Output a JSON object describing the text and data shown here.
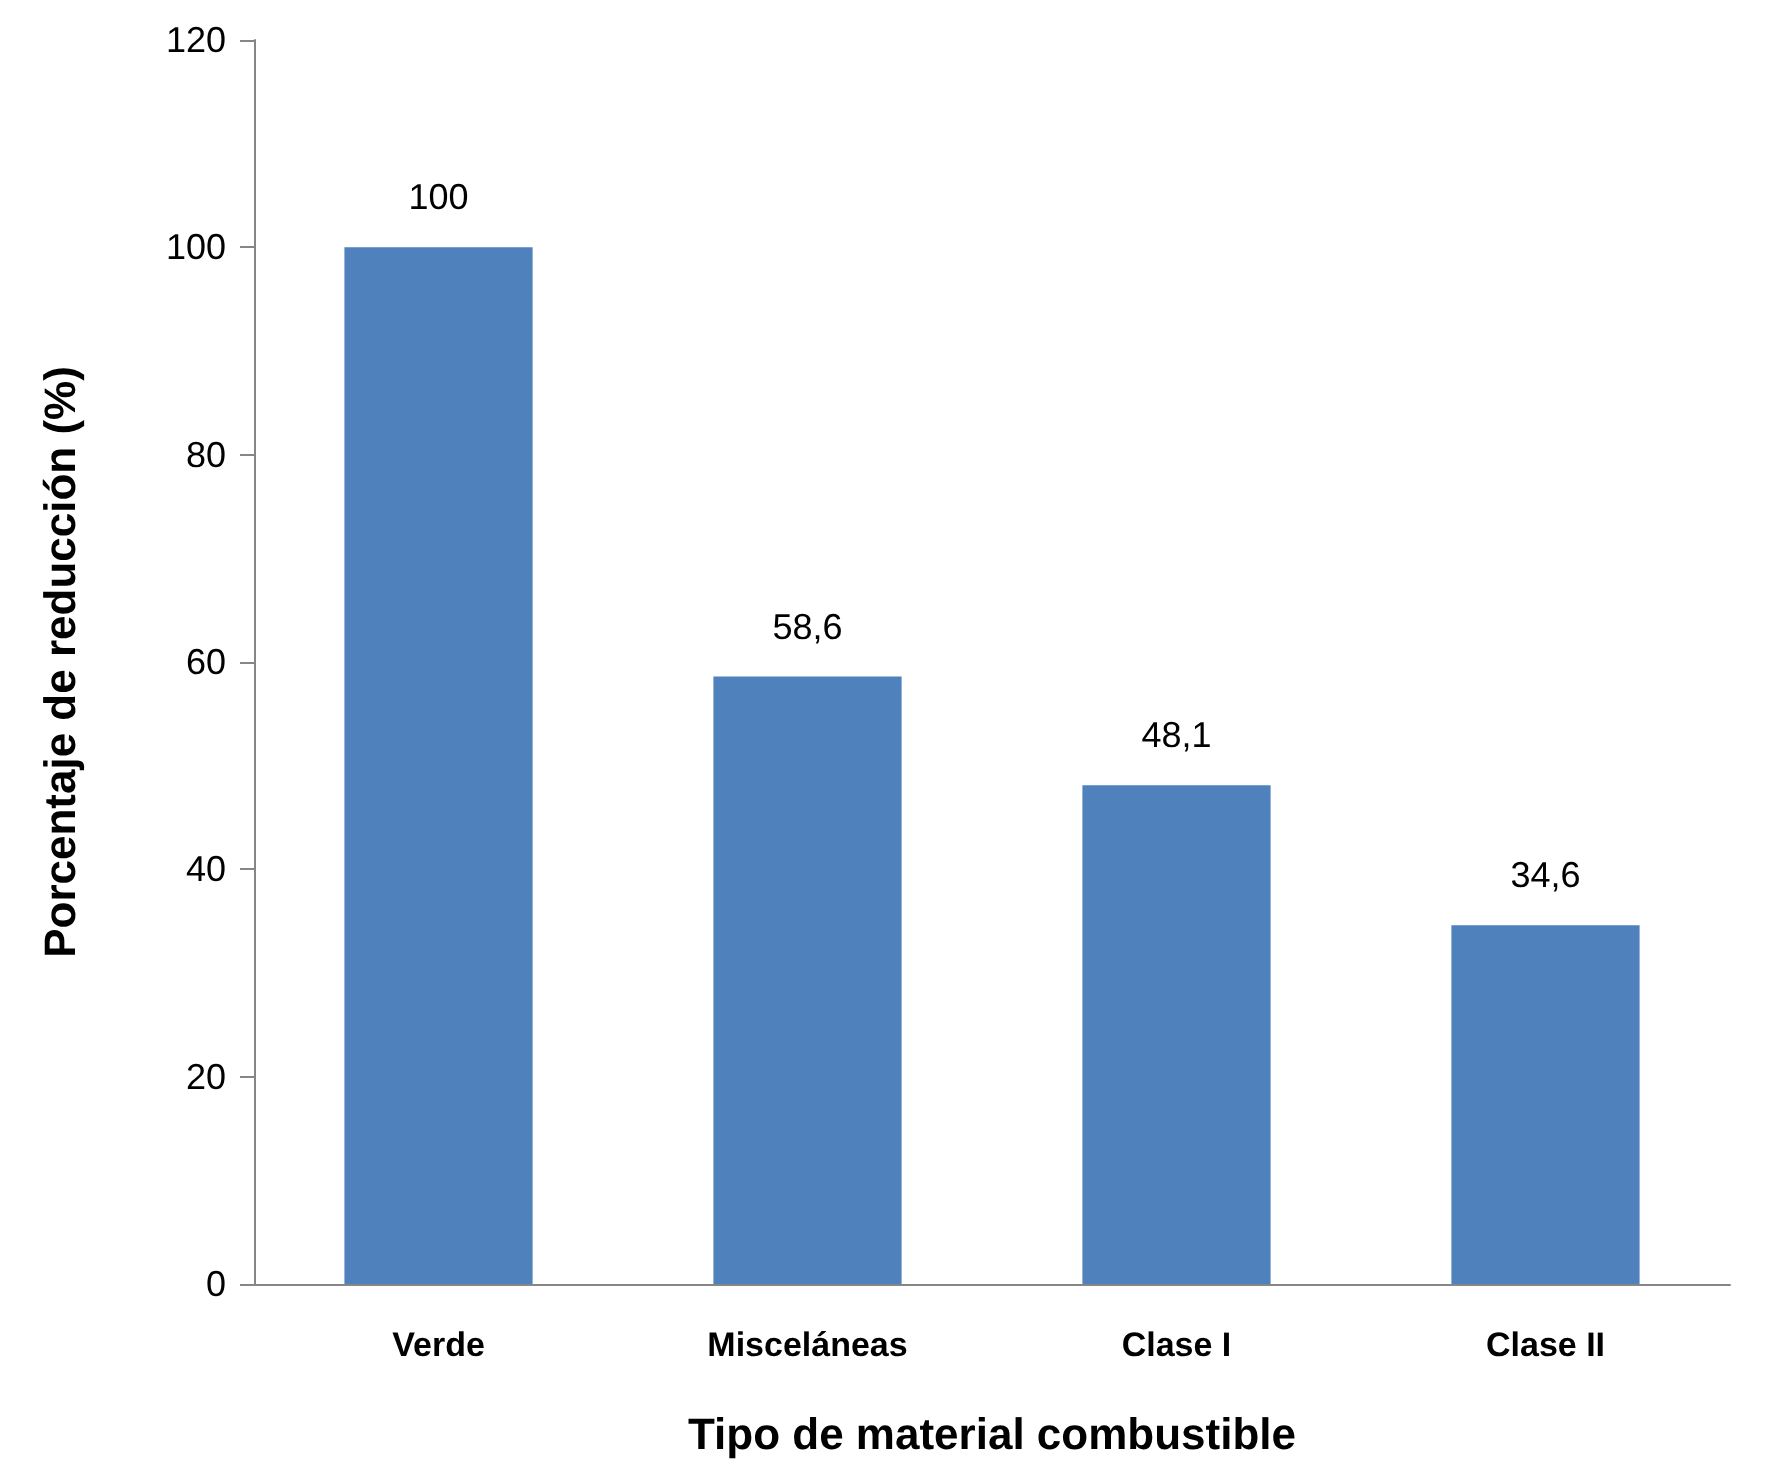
{
  "chart_data": {
    "type": "bar",
    "xlabel": "Tipo de material combustible",
    "ylabel": "Porcentaje de reducción (%)",
    "categories": [
      "Verde",
      "Misceláneas",
      "Clase I",
      "Clase II"
    ],
    "values": [
      100,
      58.6,
      48.1,
      34.6
    ],
    "value_labels": [
      "100",
      "58,6",
      "48,1",
      "34,6"
    ],
    "color": "#4f81bd",
    "ylim": [
      0,
      120
    ],
    "yticks": [
      0,
      20,
      40,
      60,
      80,
      100,
      120
    ],
    "grid": false
  }
}
